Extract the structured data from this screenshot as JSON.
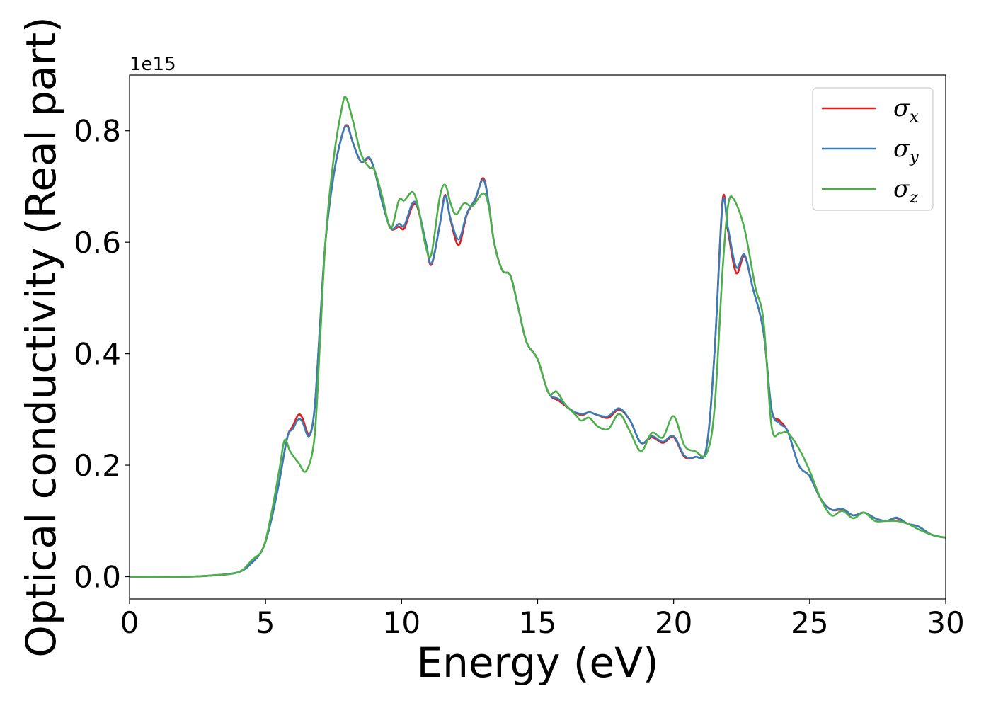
{
  "chart_data": {
    "type": "line",
    "xlabel": "Energy (eV)",
    "ylabel": "Optical conductivity (Real part)",
    "y_offset_label": "1e15",
    "xlim": [
      0,
      30
    ],
    "ylim": [
      -0.04,
      0.9
    ],
    "x_ticks": [
      0,
      5,
      10,
      15,
      20,
      25,
      30
    ],
    "x_tick_labels": [
      "0",
      "5",
      "10",
      "15",
      "20",
      "25",
      "30"
    ],
    "y_ticks": [
      0.0,
      0.2,
      0.4,
      0.6,
      0.8
    ],
    "y_tick_labels": [
      "0.0",
      "0.2",
      "0.4",
      "0.6",
      "0.8"
    ],
    "grid": false,
    "legend_position": "top-right",
    "series": [
      {
        "name": "σx",
        "symbol": "σ",
        "subscript": "x",
        "color": "#e41a1c",
        "points": [
          [
            0,
            0
          ],
          [
            2,
            0
          ],
          [
            3,
            0.002
          ],
          [
            4,
            0.008
          ],
          [
            4.5,
            0.025
          ],
          [
            4.9,
            0.05
          ],
          [
            5.2,
            0.1
          ],
          [
            5.5,
            0.17
          ],
          [
            5.8,
            0.25
          ],
          [
            6.0,
            0.27
          ],
          [
            6.2,
            0.29
          ],
          [
            6.35,
            0.285
          ],
          [
            6.6,
            0.255
          ],
          [
            6.8,
            0.3
          ],
          [
            7.0,
            0.45
          ],
          [
            7.2,
            0.6
          ],
          [
            7.5,
            0.72
          ],
          [
            7.8,
            0.79
          ],
          [
            8.0,
            0.81
          ],
          [
            8.2,
            0.78
          ],
          [
            8.5,
            0.745
          ],
          [
            8.8,
            0.75
          ],
          [
            9.0,
            0.73
          ],
          [
            9.3,
            0.67
          ],
          [
            9.6,
            0.625
          ],
          [
            9.9,
            0.628
          ],
          [
            10.1,
            0.625
          ],
          [
            10.4,
            0.665
          ],
          [
            10.6,
            0.66
          ],
          [
            10.9,
            0.595
          ],
          [
            11.1,
            0.56
          ],
          [
            11.4,
            0.63
          ],
          [
            11.6,
            0.685
          ],
          [
            11.8,
            0.64
          ],
          [
            12.1,
            0.595
          ],
          [
            12.4,
            0.65
          ],
          [
            12.7,
            0.675
          ],
          [
            13.0,
            0.715
          ],
          [
            13.2,
            0.67
          ],
          [
            13.4,
            0.6
          ],
          [
            13.7,
            0.55
          ],
          [
            14.0,
            0.54
          ],
          [
            14.3,
            0.48
          ],
          [
            14.6,
            0.42
          ],
          [
            15.0,
            0.39
          ],
          [
            15.4,
            0.33
          ],
          [
            15.8,
            0.315
          ],
          [
            16.2,
            0.3
          ],
          [
            16.6,
            0.29
          ],
          [
            16.9,
            0.295
          ],
          [
            17.2,
            0.29
          ],
          [
            17.6,
            0.285
          ],
          [
            18.0,
            0.3
          ],
          [
            18.4,
            0.28
          ],
          [
            18.8,
            0.24
          ],
          [
            19.2,
            0.25
          ],
          [
            19.6,
            0.24
          ],
          [
            20.0,
            0.25
          ],
          [
            20.4,
            0.215
          ],
          [
            20.8,
            0.215
          ],
          [
            21.2,
            0.23
          ],
          [
            21.5,
            0.4
          ],
          [
            21.8,
            0.675
          ],
          [
            22.0,
            0.62
          ],
          [
            22.3,
            0.545
          ],
          [
            22.6,
            0.575
          ],
          [
            22.9,
            0.52
          ],
          [
            23.3,
            0.44
          ],
          [
            23.6,
            0.3
          ],
          [
            23.9,
            0.28
          ],
          [
            24.2,
            0.26
          ],
          [
            24.6,
            0.2
          ],
          [
            25.0,
            0.18
          ],
          [
            25.4,
            0.14
          ],
          [
            25.8,
            0.12
          ],
          [
            26.2,
            0.12
          ],
          [
            26.6,
            0.11
          ],
          [
            27.0,
            0.115
          ],
          [
            27.4,
            0.105
          ],
          [
            27.8,
            0.1
          ],
          [
            28.2,
            0.105
          ],
          [
            28.6,
            0.095
          ],
          [
            29.0,
            0.09
          ],
          [
            29.5,
            0.075
          ],
          [
            30,
            0.07
          ]
        ]
      },
      {
        "name": "σy",
        "symbol": "σ",
        "subscript": "y",
        "color": "#377eb8",
        "points": [
          [
            0,
            0
          ],
          [
            2,
            0
          ],
          [
            3,
            0.002
          ],
          [
            4,
            0.008
          ],
          [
            4.5,
            0.025
          ],
          [
            4.9,
            0.05
          ],
          [
            5.2,
            0.1
          ],
          [
            5.5,
            0.17
          ],
          [
            5.8,
            0.25
          ],
          [
            6.0,
            0.265
          ],
          [
            6.2,
            0.282
          ],
          [
            6.35,
            0.278
          ],
          [
            6.6,
            0.252
          ],
          [
            6.8,
            0.3
          ],
          [
            7.0,
            0.45
          ],
          [
            7.2,
            0.6
          ],
          [
            7.5,
            0.72
          ],
          [
            7.8,
            0.79
          ],
          [
            8.0,
            0.808
          ],
          [
            8.2,
            0.78
          ],
          [
            8.5,
            0.745
          ],
          [
            8.8,
            0.752
          ],
          [
            9.0,
            0.73
          ],
          [
            9.3,
            0.67
          ],
          [
            9.6,
            0.625
          ],
          [
            9.9,
            0.633
          ],
          [
            10.1,
            0.63
          ],
          [
            10.4,
            0.67
          ],
          [
            10.6,
            0.662
          ],
          [
            10.9,
            0.598
          ],
          [
            11.1,
            0.562
          ],
          [
            11.4,
            0.63
          ],
          [
            11.6,
            0.683
          ],
          [
            11.8,
            0.642
          ],
          [
            12.1,
            0.605
          ],
          [
            12.4,
            0.652
          ],
          [
            12.7,
            0.677
          ],
          [
            13.0,
            0.712
          ],
          [
            13.2,
            0.67
          ],
          [
            13.4,
            0.6
          ],
          [
            13.7,
            0.55
          ],
          [
            14.0,
            0.54
          ],
          [
            14.3,
            0.48
          ],
          [
            14.6,
            0.42
          ],
          [
            15.0,
            0.39
          ],
          [
            15.4,
            0.33
          ],
          [
            15.8,
            0.318
          ],
          [
            16.2,
            0.3
          ],
          [
            16.6,
            0.292
          ],
          [
            16.9,
            0.295
          ],
          [
            17.2,
            0.29
          ],
          [
            17.6,
            0.288
          ],
          [
            18.0,
            0.302
          ],
          [
            18.4,
            0.28
          ],
          [
            18.8,
            0.24
          ],
          [
            19.2,
            0.252
          ],
          [
            19.6,
            0.242
          ],
          [
            20.0,
            0.252
          ],
          [
            20.4,
            0.217
          ],
          [
            20.8,
            0.215
          ],
          [
            21.2,
            0.23
          ],
          [
            21.5,
            0.4
          ],
          [
            21.8,
            0.668
          ],
          [
            22.0,
            0.625
          ],
          [
            22.3,
            0.555
          ],
          [
            22.6,
            0.578
          ],
          [
            22.9,
            0.52
          ],
          [
            23.3,
            0.44
          ],
          [
            23.6,
            0.3
          ],
          [
            23.9,
            0.275
          ],
          [
            24.2,
            0.26
          ],
          [
            24.6,
            0.2
          ],
          [
            25.0,
            0.18
          ],
          [
            25.4,
            0.14
          ],
          [
            25.8,
            0.12
          ],
          [
            26.2,
            0.122
          ],
          [
            26.6,
            0.11
          ],
          [
            27.0,
            0.115
          ],
          [
            27.4,
            0.105
          ],
          [
            27.8,
            0.1
          ],
          [
            28.2,
            0.106
          ],
          [
            28.6,
            0.095
          ],
          [
            29.0,
            0.09
          ],
          [
            29.5,
            0.075
          ],
          [
            30,
            0.07
          ]
        ]
      },
      {
        "name": "σz",
        "symbol": "σ",
        "subscript": "z",
        "color": "#4daf4a",
        "points": [
          [
            0,
            0
          ],
          [
            2,
            0
          ],
          [
            3,
            0.002
          ],
          [
            4,
            0.008
          ],
          [
            4.5,
            0.03
          ],
          [
            4.9,
            0.05
          ],
          [
            5.2,
            0.11
          ],
          [
            5.5,
            0.19
          ],
          [
            5.7,
            0.245
          ],
          [
            5.9,
            0.225
          ],
          [
            6.2,
            0.205
          ],
          [
            6.5,
            0.19
          ],
          [
            6.8,
            0.25
          ],
          [
            7.0,
            0.42
          ],
          [
            7.2,
            0.6
          ],
          [
            7.5,
            0.75
          ],
          [
            7.8,
            0.84
          ],
          [
            7.95,
            0.86
          ],
          [
            8.2,
            0.82
          ],
          [
            8.5,
            0.76
          ],
          [
            8.8,
            0.735
          ],
          [
            9.0,
            0.73
          ],
          [
            9.3,
            0.68
          ],
          [
            9.6,
            0.625
          ],
          [
            9.9,
            0.675
          ],
          [
            10.1,
            0.675
          ],
          [
            10.4,
            0.69
          ],
          [
            10.6,
            0.665
          ],
          [
            10.9,
            0.59
          ],
          [
            11.1,
            0.58
          ],
          [
            11.4,
            0.68
          ],
          [
            11.6,
            0.703
          ],
          [
            11.8,
            0.67
          ],
          [
            12.0,
            0.65
          ],
          [
            12.3,
            0.67
          ],
          [
            12.6,
            0.665
          ],
          [
            13.0,
            0.688
          ],
          [
            13.2,
            0.665
          ],
          [
            13.4,
            0.6
          ],
          [
            13.7,
            0.55
          ],
          [
            14.0,
            0.54
          ],
          [
            14.3,
            0.48
          ],
          [
            14.6,
            0.42
          ],
          [
            15.0,
            0.39
          ],
          [
            15.4,
            0.33
          ],
          [
            15.7,
            0.332
          ],
          [
            16.0,
            0.31
          ],
          [
            16.4,
            0.29
          ],
          [
            16.6,
            0.28
          ],
          [
            16.9,
            0.285
          ],
          [
            17.2,
            0.27
          ],
          [
            17.6,
            0.265
          ],
          [
            18.0,
            0.292
          ],
          [
            18.4,
            0.26
          ],
          [
            18.8,
            0.225
          ],
          [
            19.2,
            0.258
          ],
          [
            19.6,
            0.25
          ],
          [
            20.0,
            0.288
          ],
          [
            20.4,
            0.235
          ],
          [
            20.8,
            0.225
          ],
          [
            21.2,
            0.22
          ],
          [
            21.5,
            0.3
          ],
          [
            21.8,
            0.55
          ],
          [
            22.0,
            0.665
          ],
          [
            22.2,
            0.678
          ],
          [
            22.6,
            0.625
          ],
          [
            23.0,
            0.52
          ],
          [
            23.3,
            0.46
          ],
          [
            23.6,
            0.27
          ],
          [
            23.9,
            0.258
          ],
          [
            24.2,
            0.258
          ],
          [
            24.6,
            0.23
          ],
          [
            25.0,
            0.19
          ],
          [
            25.4,
            0.14
          ],
          [
            25.8,
            0.11
          ],
          [
            26.2,
            0.118
          ],
          [
            26.6,
            0.105
          ],
          [
            27.0,
            0.115
          ],
          [
            27.4,
            0.1
          ],
          [
            27.8,
            0.1
          ],
          [
            28.2,
            0.1
          ],
          [
            28.6,
            0.095
          ],
          [
            29.0,
            0.085
          ],
          [
            29.5,
            0.075
          ],
          [
            30,
            0.07
          ]
        ]
      }
    ]
  }
}
